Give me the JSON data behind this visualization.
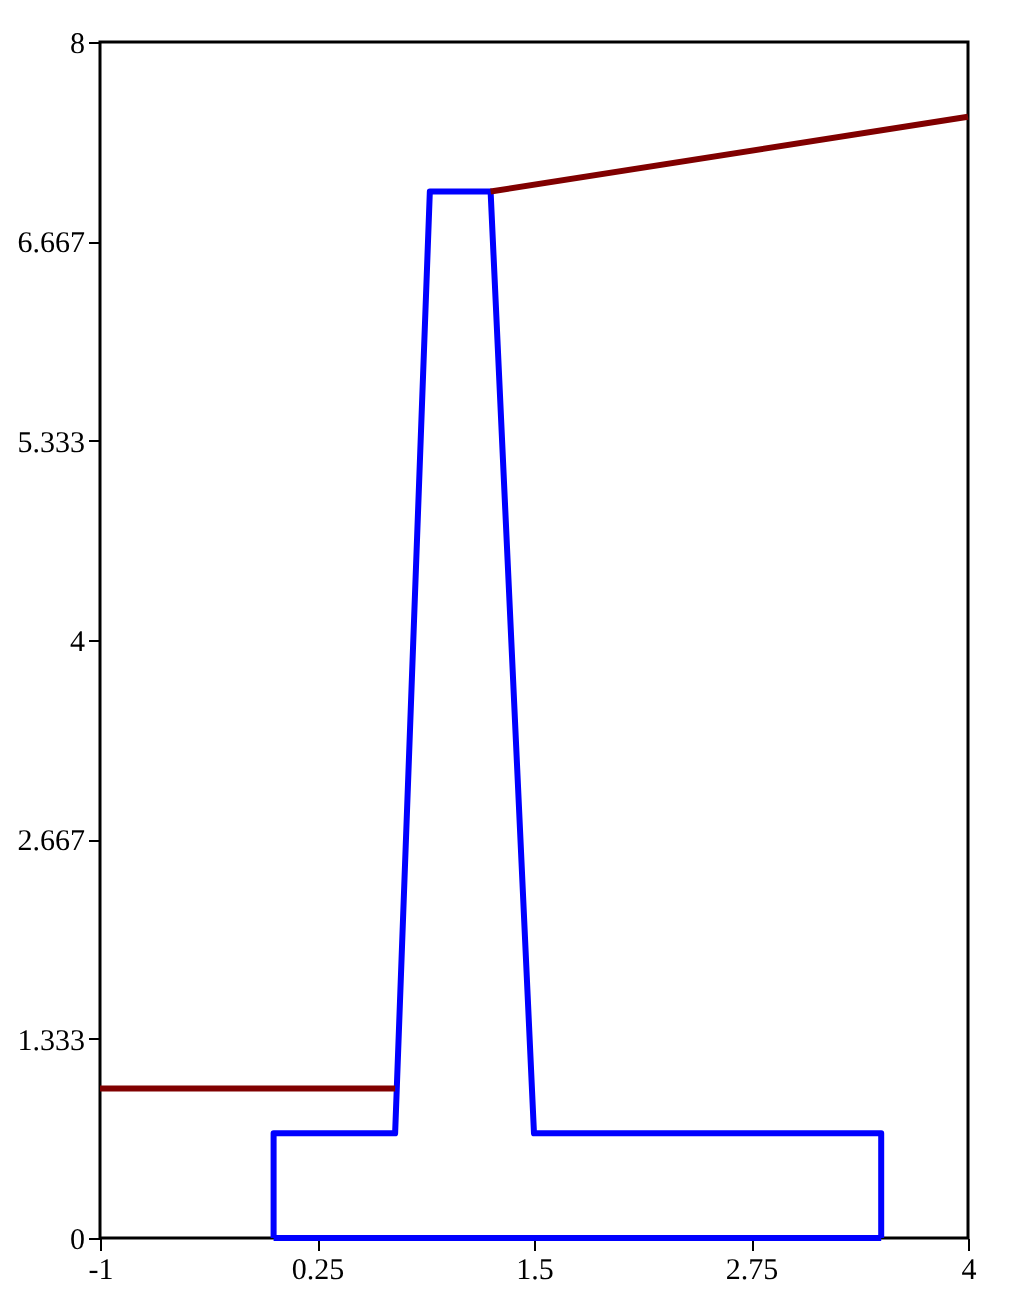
{
  "chart_data": {
    "type": "line",
    "xlim": [
      -1,
      4
    ],
    "xticks": [
      -1,
      0.25,
      1.5,
      2.75,
      4
    ],
    "ylim": [
      0,
      8
    ],
    "yticks": [
      0,
      1.333,
      2.667,
      4,
      5.333,
      6.667,
      8
    ],
    "grid": false,
    "marker": "none",
    "line_style": "solid",
    "series": [
      {
        "color": "#0000ff",
        "x": [
          0,
          0,
          0.7,
          0.9,
          1.25,
          1.5,
          3.5,
          3.5
        ],
        "values": [
          0,
          0.7,
          0.7,
          7,
          7,
          0.7,
          0.7,
          0
        ]
      },
      {
        "color": "#0000ff",
        "x": [
          0,
          3.5
        ],
        "values": [
          0,
          0
        ]
      },
      {
        "color": "#800000",
        "x": [
          -1,
          0.7
        ],
        "values": [
          1,
          1
        ]
      },
      {
        "color": "#800000",
        "x": [
          1.25,
          4
        ],
        "values": [
          7,
          7.5
        ]
      }
    ]
  }
}
